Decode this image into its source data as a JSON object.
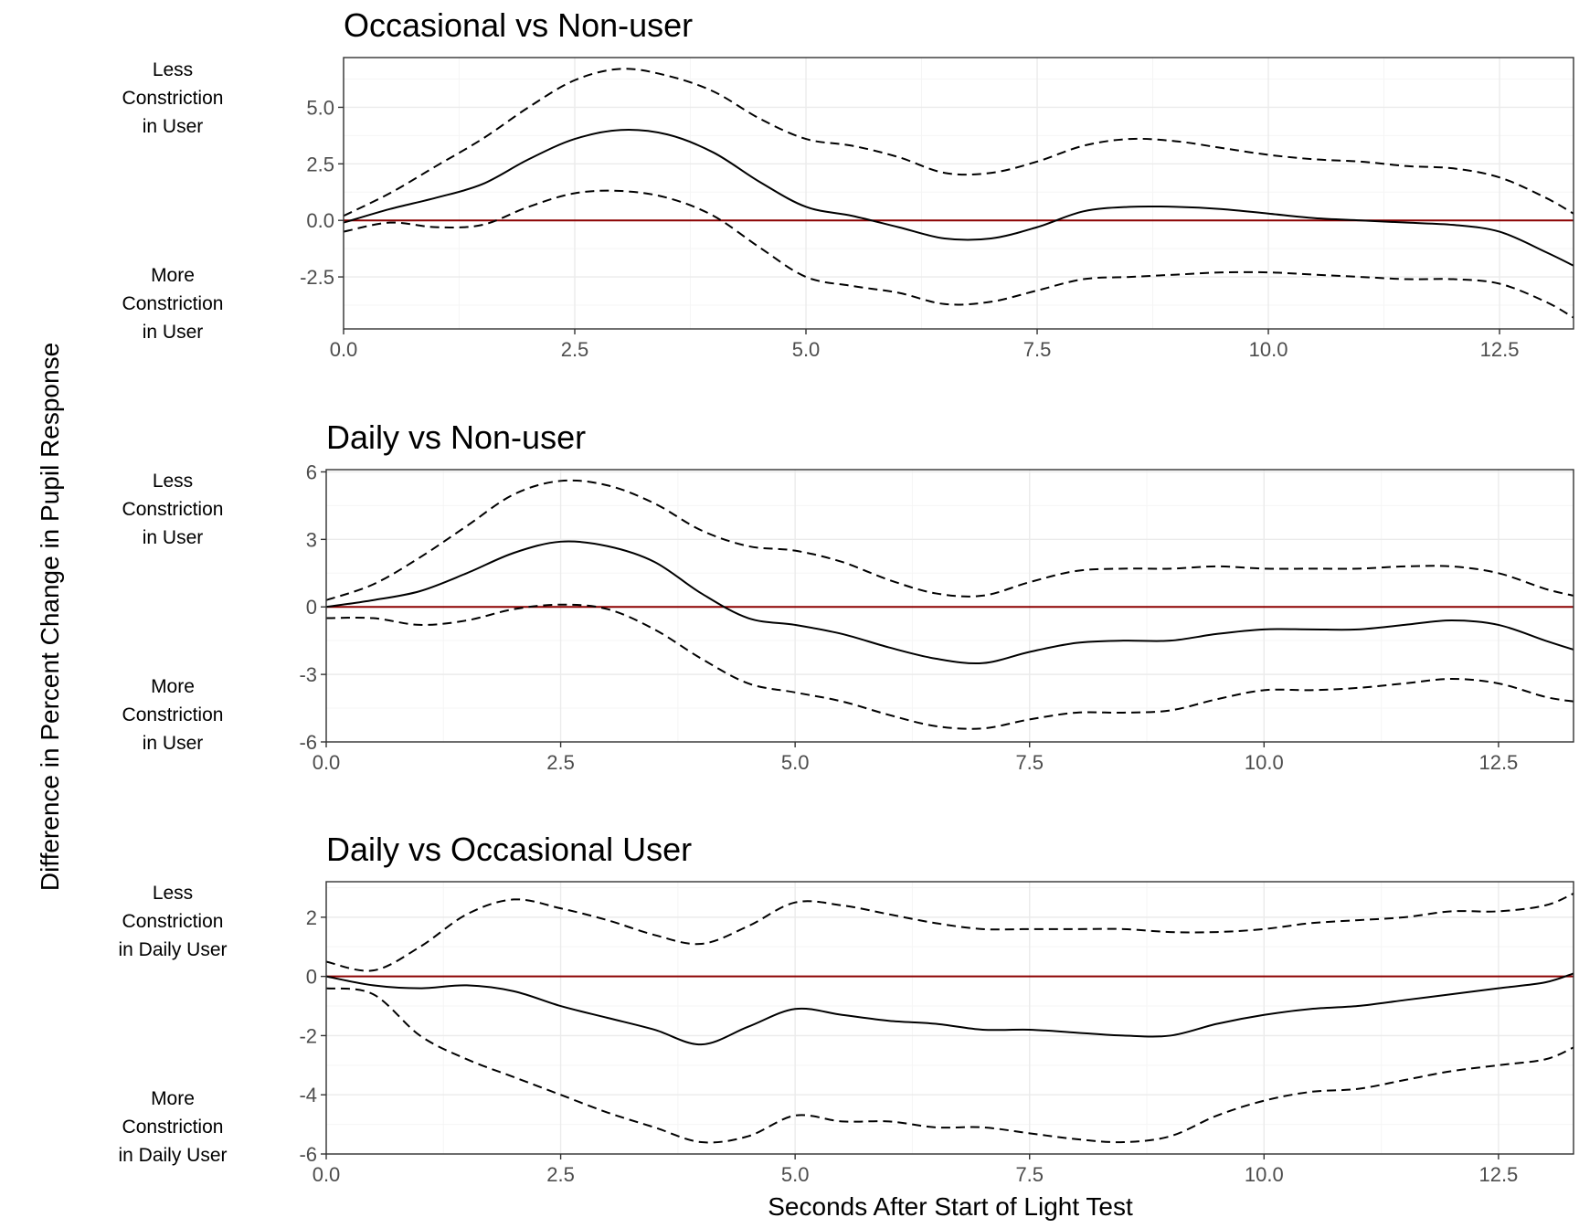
{
  "figure": {
    "ylabel": "Difference in Percent Change in Pupil Response",
    "xlabel": "Seconds After Start of Light Test"
  },
  "colors": {
    "zero_line": "#8b0000",
    "curve": "#000000",
    "grid_major": "#ebebeb",
    "grid_minor": "#f5f5f5",
    "tick_text": "#4d4d4d"
  },
  "chart_data": [
    {
      "type": "line",
      "title": "Occasional vs Non-user",
      "xlim": [
        0,
        13.3
      ],
      "ylim": [
        -4.8,
        7.2
      ],
      "x_ticks": [
        0,
        2.5,
        5,
        7.5,
        10,
        12.5
      ],
      "x_tick_labels": [
        "0.0",
        "2.5",
        "5.0",
        "7.5",
        "10.0",
        "12.5"
      ],
      "y_ticks": [
        -2.5,
        0,
        2.5,
        5
      ],
      "y_tick_labels": [
        "-2.5",
        "0.0",
        "2.5",
        "5.0"
      ],
      "grid": true,
      "zero_line": 0,
      "side_labels": {
        "upper": [
          "Less",
          "Constriction",
          "in User"
        ],
        "lower": [
          "More",
          "Constriction",
          "in User"
        ]
      },
      "series": [
        {
          "role": "estimate",
          "style": "solid",
          "x": [
            0,
            0.5,
            1,
            1.5,
            2,
            2.5,
            3,
            3.5,
            4,
            4.5,
            5,
            5.5,
            6,
            6.5,
            7,
            7.5,
            8,
            8.5,
            9,
            9.5,
            10,
            10.5,
            11,
            11.5,
            12,
            12.5,
            13,
            13.3
          ],
          "values": [
            -0.1,
            0.5,
            1.0,
            1.6,
            2.7,
            3.6,
            4.0,
            3.8,
            3.0,
            1.7,
            0.6,
            0.2,
            -0.3,
            -0.8,
            -0.8,
            -0.3,
            0.4,
            0.6,
            0.6,
            0.5,
            0.3,
            0.1,
            0.0,
            -0.1,
            -0.2,
            -0.5,
            -1.4,
            -2.0
          ]
        },
        {
          "role": "upper-bound",
          "style": "dashed",
          "x": [
            0,
            0.5,
            1,
            1.5,
            2,
            2.5,
            3,
            3.5,
            4,
            4.5,
            5,
            5.5,
            6,
            6.5,
            7,
            7.5,
            8,
            8.5,
            9,
            9.5,
            10,
            10.5,
            11,
            11.5,
            12,
            12.5,
            13,
            13.3
          ],
          "values": [
            0.2,
            1.2,
            2.4,
            3.6,
            5.0,
            6.2,
            6.7,
            6.4,
            5.7,
            4.5,
            3.6,
            3.3,
            2.8,
            2.1,
            2.1,
            2.6,
            3.3,
            3.6,
            3.5,
            3.2,
            2.9,
            2.7,
            2.6,
            2.4,
            2.3,
            1.9,
            1.0,
            0.3
          ]
        },
        {
          "role": "lower-bound",
          "style": "dashed",
          "x": [
            0,
            0.5,
            1,
            1.5,
            2,
            2.5,
            3,
            3.5,
            4,
            4.5,
            5,
            5.5,
            6,
            6.5,
            7,
            7.5,
            8,
            8.5,
            9,
            9.5,
            10,
            10.5,
            11,
            11.5,
            12,
            12.5,
            13,
            13.3
          ],
          "values": [
            -0.5,
            -0.1,
            -0.3,
            -0.2,
            0.6,
            1.2,
            1.3,
            1.0,
            0.2,
            -1.2,
            -2.5,
            -2.9,
            -3.2,
            -3.7,
            -3.6,
            -3.1,
            -2.6,
            -2.5,
            -2.4,
            -2.3,
            -2.3,
            -2.4,
            -2.5,
            -2.6,
            -2.6,
            -2.8,
            -3.6,
            -4.3
          ]
        }
      ]
    },
    {
      "type": "line",
      "title": "Daily vs Non-user",
      "xlim": [
        0,
        13.3
      ],
      "ylim": [
        -6,
        6.1
      ],
      "x_ticks": [
        0,
        2.5,
        5,
        7.5,
        10,
        12.5
      ],
      "x_tick_labels": [
        "0.0",
        "2.5",
        "5.0",
        "7.5",
        "10.0",
        "12.5"
      ],
      "y_ticks": [
        -6,
        -3,
        0,
        3,
        6
      ],
      "y_tick_labels": [
        "-6",
        "-3",
        "0",
        "3",
        "6"
      ],
      "grid": true,
      "zero_line": 0,
      "side_labels": {
        "upper": [
          "Less",
          "Constriction",
          "in User"
        ],
        "lower": [
          "More",
          "Constriction",
          "in User"
        ]
      },
      "series": [
        {
          "role": "estimate",
          "style": "solid",
          "x": [
            0,
            0.5,
            1,
            1.5,
            2,
            2.5,
            3,
            3.5,
            4,
            4.5,
            5,
            5.5,
            6,
            6.5,
            7,
            7.5,
            8,
            8.5,
            9,
            9.5,
            10,
            10.5,
            11,
            11.5,
            12,
            12.5,
            13,
            13.3
          ],
          "values": [
            0.0,
            0.3,
            0.7,
            1.5,
            2.4,
            2.9,
            2.7,
            2.0,
            0.6,
            -0.5,
            -0.8,
            -1.2,
            -1.8,
            -2.3,
            -2.5,
            -2.0,
            -1.6,
            -1.5,
            -1.5,
            -1.2,
            -1.0,
            -1.0,
            -1.0,
            -0.8,
            -0.6,
            -0.8,
            -1.5,
            -1.9
          ]
        },
        {
          "role": "upper-bound",
          "style": "dashed",
          "x": [
            0,
            0.5,
            1,
            1.5,
            2,
            2.5,
            3,
            3.5,
            4,
            4.5,
            5,
            5.5,
            6,
            6.5,
            7,
            7.5,
            8,
            8.5,
            9,
            9.5,
            10,
            10.5,
            11,
            11.5,
            12,
            12.5,
            13,
            13.3
          ],
          "values": [
            0.3,
            1.0,
            2.2,
            3.6,
            5.0,
            5.6,
            5.4,
            4.6,
            3.4,
            2.7,
            2.5,
            2.0,
            1.2,
            0.6,
            0.5,
            1.1,
            1.6,
            1.7,
            1.7,
            1.8,
            1.7,
            1.7,
            1.7,
            1.8,
            1.8,
            1.5,
            0.8,
            0.5
          ]
        },
        {
          "role": "lower-bound",
          "style": "dashed",
          "x": [
            0,
            0.5,
            1,
            1.5,
            2,
            2.5,
            3,
            3.5,
            4,
            4.5,
            5,
            5.5,
            6,
            6.5,
            7,
            7.5,
            8,
            8.5,
            9,
            9.5,
            10,
            10.5,
            11,
            11.5,
            12,
            12.5,
            13,
            13.3
          ],
          "values": [
            -0.5,
            -0.5,
            -0.8,
            -0.6,
            -0.1,
            0.1,
            -0.1,
            -1.0,
            -2.3,
            -3.4,
            -3.8,
            -4.2,
            -4.8,
            -5.3,
            -5.4,
            -5.0,
            -4.7,
            -4.7,
            -4.6,
            -4.1,
            -3.7,
            -3.7,
            -3.6,
            -3.4,
            -3.2,
            -3.4,
            -4.0,
            -4.2
          ]
        }
      ]
    },
    {
      "type": "line",
      "title": "Daily vs Occasional User",
      "xlim": [
        0,
        13.3
      ],
      "ylim": [
        -6,
        3.2
      ],
      "x_ticks": [
        0,
        2.5,
        5,
        7.5,
        10,
        12.5
      ],
      "x_tick_labels": [
        "0.0",
        "2.5",
        "5.0",
        "7.5",
        "10.0",
        "12.5"
      ],
      "y_ticks": [
        -6,
        -4,
        -2,
        0,
        2
      ],
      "y_tick_labels": [
        "-6",
        "-4",
        "-2",
        "0",
        "2"
      ],
      "grid": true,
      "zero_line": 0,
      "side_labels": {
        "upper": [
          "Less",
          "Constriction",
          "in Daily User"
        ],
        "lower": [
          "More",
          "Constriction",
          "in Daily User"
        ]
      },
      "series": [
        {
          "role": "estimate",
          "style": "solid",
          "x": [
            0,
            0.5,
            1,
            1.5,
            2,
            2.5,
            3,
            3.5,
            4,
            4.5,
            5,
            5.5,
            6,
            6.5,
            7,
            7.5,
            8,
            8.5,
            9,
            9.5,
            10,
            10.5,
            11,
            11.5,
            12,
            12.5,
            13,
            13.3
          ],
          "values": [
            0.0,
            -0.3,
            -0.4,
            -0.3,
            -0.5,
            -1.0,
            -1.4,
            -1.8,
            -2.3,
            -1.7,
            -1.1,
            -1.3,
            -1.5,
            -1.6,
            -1.8,
            -1.8,
            -1.9,
            -2.0,
            -2.0,
            -1.6,
            -1.3,
            -1.1,
            -1.0,
            -0.8,
            -0.6,
            -0.4,
            -0.2,
            0.1
          ]
        },
        {
          "role": "upper-bound",
          "style": "dashed",
          "x": [
            0,
            0.5,
            1,
            1.5,
            2,
            2.5,
            3,
            3.5,
            4,
            4.5,
            5,
            5.5,
            6,
            6.5,
            7,
            7.5,
            8,
            8.5,
            9,
            9.5,
            10,
            10.5,
            11,
            11.5,
            12,
            12.5,
            13,
            13.3
          ],
          "values": [
            0.5,
            0.2,
            1.0,
            2.1,
            2.6,
            2.3,
            1.9,
            1.4,
            1.1,
            1.7,
            2.5,
            2.4,
            2.1,
            1.8,
            1.6,
            1.6,
            1.6,
            1.6,
            1.5,
            1.5,
            1.6,
            1.8,
            1.9,
            2.0,
            2.2,
            2.2,
            2.4,
            2.8
          ]
        },
        {
          "role": "lower-bound",
          "style": "dashed",
          "x": [
            0,
            0.5,
            1,
            1.5,
            2,
            2.5,
            3,
            3.5,
            4,
            4.5,
            5,
            5.5,
            6,
            6.5,
            7,
            7.5,
            8,
            8.5,
            9,
            9.5,
            10,
            10.5,
            11,
            11.5,
            12,
            12.5,
            13,
            13.3
          ],
          "values": [
            -0.4,
            -0.6,
            -2.0,
            -2.8,
            -3.4,
            -4.0,
            -4.6,
            -5.1,
            -5.6,
            -5.4,
            -4.7,
            -4.9,
            -4.9,
            -5.1,
            -5.1,
            -5.3,
            -5.5,
            -5.6,
            -5.4,
            -4.7,
            -4.2,
            -3.9,
            -3.8,
            -3.5,
            -3.2,
            -3.0,
            -2.8,
            -2.4
          ]
        }
      ]
    }
  ]
}
